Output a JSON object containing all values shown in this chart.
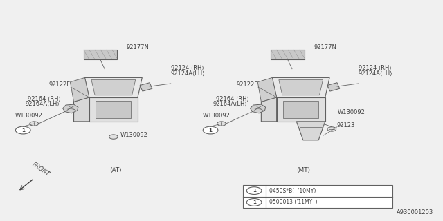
{
  "bg_color": "#f0f0f0",
  "line_color": "#606060",
  "text_color": "#404040",
  "title_text": "A930001203",
  "legend_line1": "0450S*B( -'10MY)",
  "legend_line2": "0500013 ('11MY- )",
  "at_label": "<AT>",
  "mt_label": "<MT>",
  "front_label": "FRONT"
}
